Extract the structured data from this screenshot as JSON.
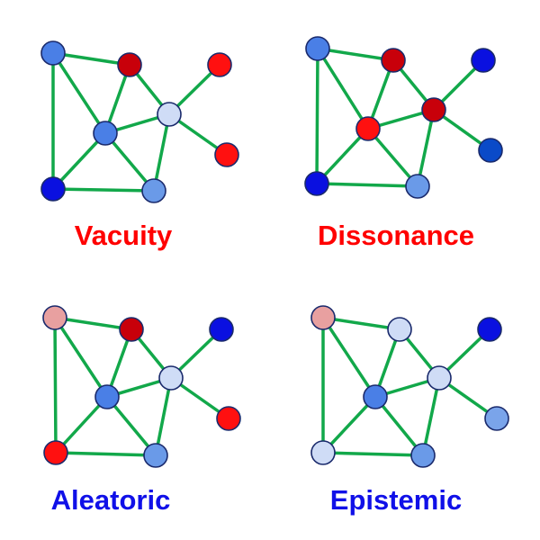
{
  "palette": {
    "edge": "#12a84a",
    "node_stroke": "#1a2a6c",
    "title_red": "#ff0000",
    "title_blue": "#1010e8"
  },
  "panels": [
    {
      "title": "Vacuity",
      "title_color": "#ff0000",
      "node_colors": [
        "#4a7fe6",
        "#c8000a",
        "#ff1010",
        "#4a7fe6",
        "#cfdcf6",
        "#ff1010",
        "#0a10e0",
        "#6a9ae8"
      ]
    },
    {
      "title": "Dissonance",
      "title_color": "#ff0000",
      "node_colors": [
        "#4a7fe6",
        "#c8000a",
        "#0a10e0",
        "#ff1010",
        "#c8000a",
        "#0a4ac8",
        "#0a10e0",
        "#6a9ae8"
      ]
    },
    {
      "title": "Aleatoric",
      "title_color": "#1010e8",
      "node_colors": [
        "#e8a0a0",
        "#c8000a",
        "#0a10e0",
        "#4a7fe6",
        "#cfdcf6",
        "#ff1010",
        "#ff1010",
        "#6a9ae8"
      ]
    },
    {
      "title": "Epistemic",
      "title_color": "#1010e8",
      "node_colors": [
        "#e8a0a0",
        "#cfdcf6",
        "#0a10e0",
        "#4a7fe6",
        "#cfdcf6",
        "#7aa4ea",
        "#cfdcf6",
        "#6a9ae8"
      ]
    }
  ],
  "edges": [
    [
      0,
      1
    ],
    [
      0,
      3
    ],
    [
      0,
      6
    ],
    [
      1,
      3
    ],
    [
      1,
      4
    ],
    [
      3,
      4
    ],
    [
      3,
      6
    ],
    [
      3,
      7
    ],
    [
      6,
      7
    ],
    [
      4,
      7
    ],
    [
      4,
      2
    ],
    [
      4,
      5
    ]
  ]
}
